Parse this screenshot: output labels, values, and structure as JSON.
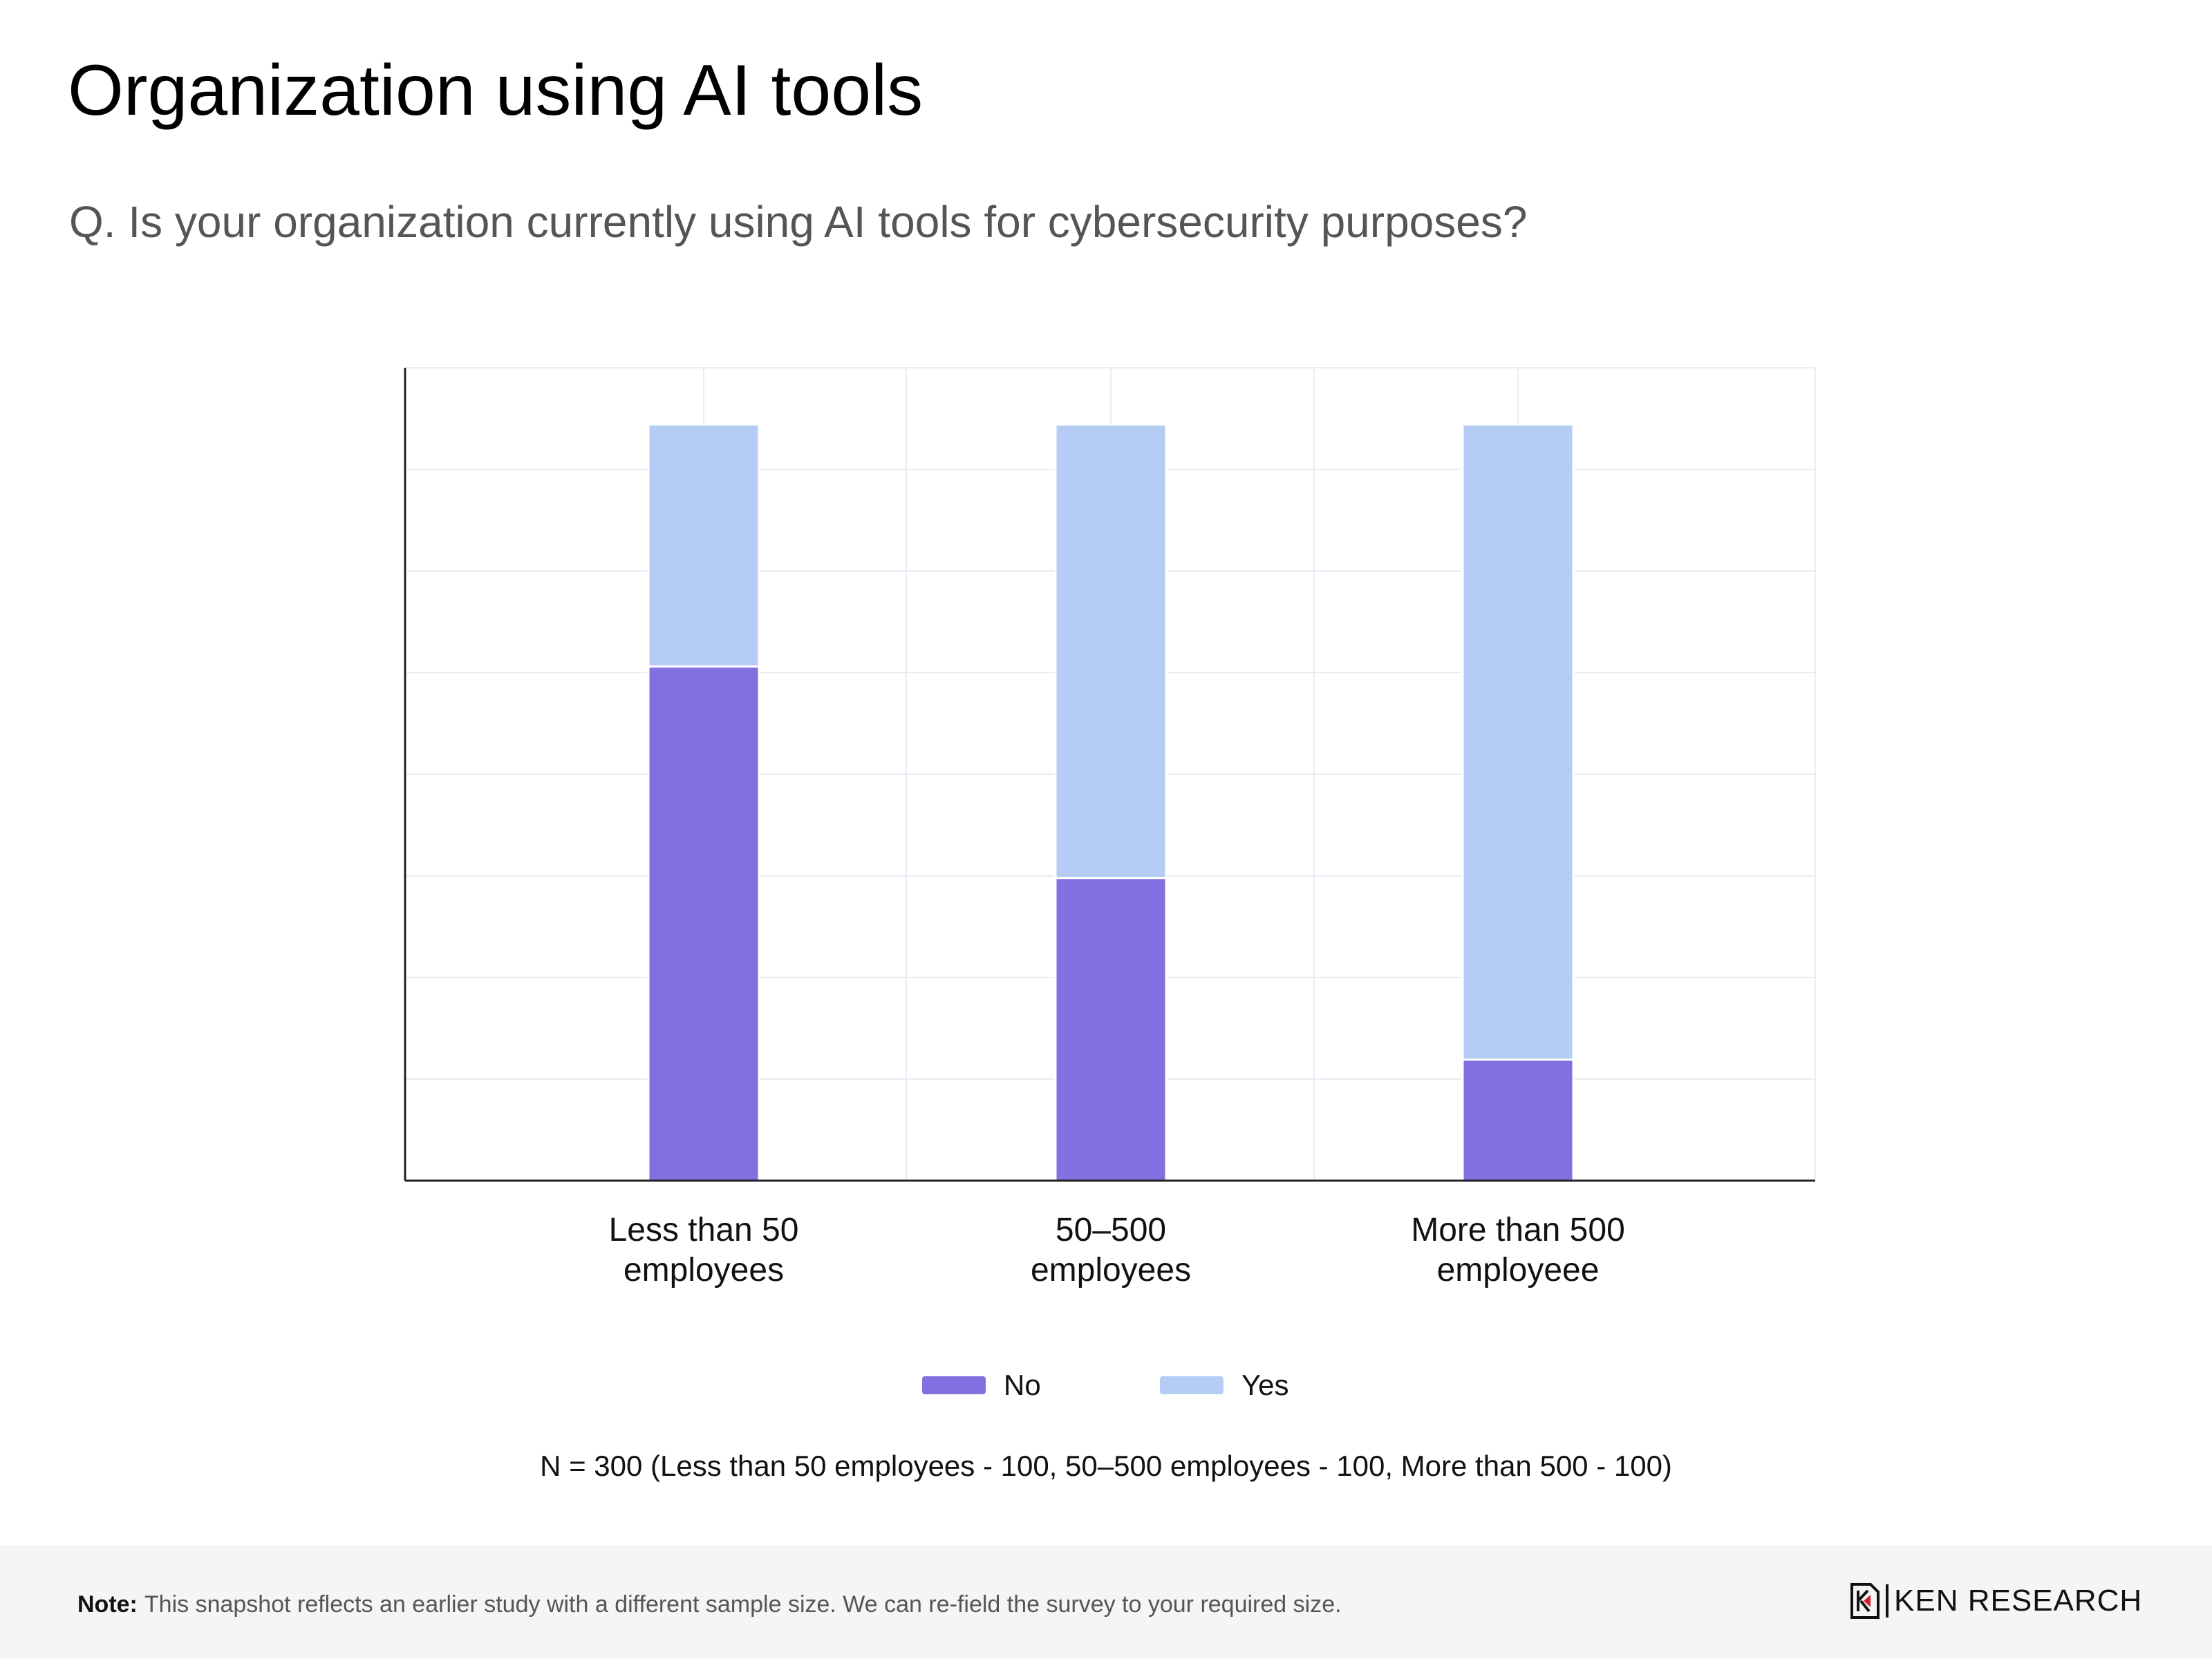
{
  "title": "Organization using AI tools",
  "subtitle": "Q. Is your organization currently using AI tools for cybersecurity purposes?",
  "chart_data": {
    "type": "bar",
    "stacked": true,
    "categories": [
      [
        "Less than 50",
        "employees"
      ],
      [
        "50–500",
        "employees"
      ],
      [
        "More than 500",
        "employeee"
      ]
    ],
    "series": [
      {
        "name": "No",
        "color": "#8170e0",
        "values": [
          68,
          40,
          16
        ]
      },
      {
        "name": "Yes",
        "color": "#b5cdf4",
        "values": [
          32,
          60,
          84
        ]
      }
    ],
    "ylim": [
      0,
      107.5
    ],
    "grid": true,
    "legend_position": "bottom"
  },
  "sample_note": "N = 300 (Less than 50 employees - 100, 50–500 employees - 100, More than 500 - 100)",
  "footer": {
    "note_label": "Note:",
    "note_text": "This snapshot reflects an earlier study with a different sample size. We can re-field the survey to your required size.",
    "brand": "KEN RESEARCH"
  }
}
